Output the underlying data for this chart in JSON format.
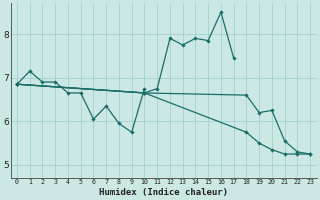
{
  "xlabel": "Humidex (Indice chaleur)",
  "background_color": "#cce8e4",
  "grid_color": "#99cccc",
  "line_color": "#1a6e6a",
  "xlim": [
    -0.5,
    23.5
  ],
  "ylim": [
    4.7,
    8.7
  ],
  "xticks": [
    0,
    1,
    2,
    3,
    4,
    5,
    6,
    7,
    8,
    9,
    10,
    11,
    12,
    13,
    14,
    15,
    16,
    17,
    18,
    19,
    20,
    21,
    22,
    23
  ],
  "yticks": [
    5,
    6,
    7,
    8
  ],
  "line1": {
    "x": [
      0,
      1,
      2,
      3,
      4,
      5,
      6,
      7,
      8,
      9,
      10
    ],
    "y": [
      6.85,
      7.15,
      6.9,
      6.9,
      6.65,
      6.65,
      6.05,
      6.35,
      5.95,
      5.75,
      6.75
    ]
  },
  "line2": {
    "x": [
      0,
      10,
      11,
      12,
      13,
      14,
      15,
      16,
      17
    ],
    "y": [
      6.85,
      6.65,
      6.75,
      7.9,
      7.75,
      7.9,
      7.85,
      8.5,
      7.45
    ]
  },
  "line3": {
    "x": [
      0,
      10,
      18,
      19,
      20,
      21,
      22,
      23
    ],
    "y": [
      6.85,
      6.65,
      6.6,
      6.2,
      6.25,
      5.55,
      5.3,
      5.25
    ]
  },
  "line4": {
    "x": [
      0,
      10,
      18,
      19,
      20,
      21,
      22,
      23
    ],
    "y": [
      6.85,
      6.65,
      5.75,
      5.5,
      5.35,
      5.25,
      5.25,
      5.25
    ]
  }
}
